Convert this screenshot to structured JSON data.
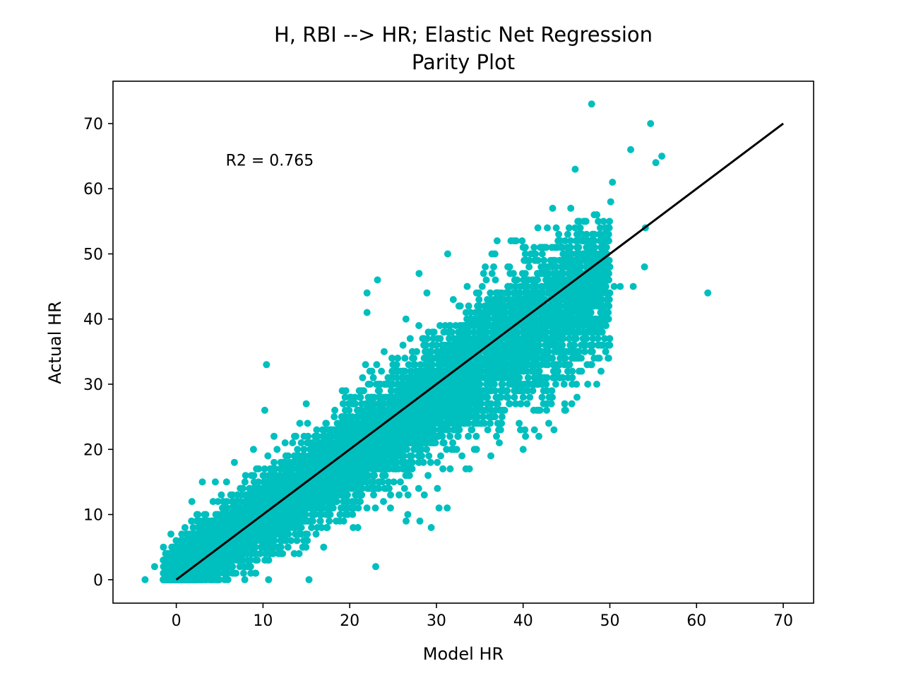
{
  "chart_data": {
    "type": "scatter",
    "title": "H, RBI --> HR; Elastic Net Regression",
    "subtitle": "Parity Plot",
    "xlabel": "Model HR",
    "ylabel": "Actual HR",
    "xlim": [
      -7.3,
      73.5
    ],
    "ylim": [
      -3.6,
      76.5
    ],
    "xticks": [
      0,
      10,
      20,
      30,
      40,
      50,
      60,
      70
    ],
    "yticks": [
      0,
      10,
      20,
      30,
      40,
      50,
      60,
      70
    ],
    "annotation": "R2 = 0.765",
    "annotation_pos": [
      5.7,
      64.4
    ],
    "grid": false,
    "colors": {
      "points": "#00bfbf",
      "parity_line": "#000000",
      "frame": "#000000"
    },
    "parity_line": {
      "x": [
        0,
        70
      ],
      "y": [
        0,
        70
      ]
    },
    "cloud": {
      "description_note": "dense point cloud approximated by a regression band",
      "slope": 0.92,
      "intercept": 0.8,
      "residual_sd": 3.6,
      "x_range": [
        -1.5,
        50
      ],
      "count": 9000
    },
    "series": [
      {
        "name": "",
        "outliers": [
          {
            "x": -3.6,
            "y": 0
          },
          {
            "x": -2.5,
            "y": 2
          },
          {
            "x": 47.9,
            "y": 73
          },
          {
            "x": 54.7,
            "y": 70
          },
          {
            "x": 52.4,
            "y": 66
          },
          {
            "x": 55.3,
            "y": 64
          },
          {
            "x": 56.0,
            "y": 65
          },
          {
            "x": 46.0,
            "y": 63
          },
          {
            "x": 50.3,
            "y": 61
          },
          {
            "x": 50.1,
            "y": 58
          },
          {
            "x": 43.4,
            "y": 57
          },
          {
            "x": 45.5,
            "y": 57
          },
          {
            "x": 48.5,
            "y": 56
          },
          {
            "x": 48.2,
            "y": 56
          },
          {
            "x": 47.1,
            "y": 55
          },
          {
            "x": 54.1,
            "y": 54
          },
          {
            "x": 41.7,
            "y": 54
          },
          {
            "x": 39.2,
            "y": 52
          },
          {
            "x": 46.5,
            "y": 53
          },
          {
            "x": 40.0,
            "y": 51
          },
          {
            "x": 61.3,
            "y": 44
          },
          {
            "x": 54.0,
            "y": 48
          },
          {
            "x": 52.7,
            "y": 45
          },
          {
            "x": 51.2,
            "y": 45
          },
          {
            "x": 50.5,
            "y": 45
          },
          {
            "x": 49.0,
            "y": 47
          },
          {
            "x": 49.7,
            "y": 47
          },
          {
            "x": 47.2,
            "y": 49
          },
          {
            "x": 48.5,
            "y": 49
          },
          {
            "x": 44.8,
            "y": 50
          },
          {
            "x": 44.3,
            "y": 49
          },
          {
            "x": 46.8,
            "y": 44
          },
          {
            "x": 49.2,
            "y": 44
          },
          {
            "x": 49.3,
            "y": 42
          },
          {
            "x": 47.4,
            "y": 47
          },
          {
            "x": 46.5,
            "y": 42
          },
          {
            "x": 44.6,
            "y": 39
          },
          {
            "x": 44.8,
            "y": 27
          },
          {
            "x": 46.3,
            "y": 35
          },
          {
            "x": 46.7,
            "y": 36
          },
          {
            "x": 46.1,
            "y": 34
          },
          {
            "x": 47.2,
            "y": 37
          },
          {
            "x": 42.7,
            "y": 35
          },
          {
            "x": 41.5,
            "y": 35
          },
          {
            "x": 45.2,
            "y": 35
          },
          {
            "x": 43.0,
            "y": 28
          },
          {
            "x": 40.0,
            "y": 20
          },
          {
            "x": 40.2,
            "y": 23
          },
          {
            "x": 39.7,
            "y": 23
          },
          {
            "x": 23.0,
            "y": 2
          },
          {
            "x": 15.3,
            "y": 0
          },
          {
            "x": 29.4,
            "y": 8
          },
          {
            "x": 26.5,
            "y": 9
          },
          {
            "x": 30.3,
            "y": 11
          },
          {
            "x": 33.8,
            "y": 17
          },
          {
            "x": 33.4,
            "y": 17
          },
          {
            "x": 30.1,
            "y": 18
          },
          {
            "x": 22.0,
            "y": 44
          },
          {
            "x": 23.2,
            "y": 46
          },
          {
            "x": 22.0,
            "y": 41
          },
          {
            "x": 28.0,
            "y": 47
          },
          {
            "x": 31.3,
            "y": 50
          },
          {
            "x": 37.0,
            "y": 52
          },
          {
            "x": 38.6,
            "y": 52
          },
          {
            "x": 36.4,
            "y": 50
          },
          {
            "x": 10.4,
            "y": 33
          },
          {
            "x": 8.9,
            "y": 20
          },
          {
            "x": 6.7,
            "y": 18
          },
          {
            "x": 10.2,
            "y": 26
          },
          {
            "x": 9.5,
            "y": 17
          },
          {
            "x": 3.0,
            "y": 15
          },
          {
            "x": 4.5,
            "y": 15
          },
          {
            "x": 5.8,
            "y": 15
          },
          {
            "x": 1.8,
            "y": 12
          },
          {
            "x": 2.5,
            "y": 10
          },
          {
            "x": 1.0,
            "y": 8
          },
          {
            "x": 0.5,
            "y": 6
          },
          {
            "x": 0.2,
            "y": 4
          },
          {
            "x": -0.5,
            "y": 3
          },
          {
            "x": -1.2,
            "y": 1
          },
          {
            "x": -0.8,
            "y": 2
          },
          {
            "x": 40.1,
            "y": 45
          },
          {
            "x": 42.5,
            "y": 47
          },
          {
            "x": 43.7,
            "y": 45
          },
          {
            "x": 38.5,
            "y": 47
          },
          {
            "x": 36.6,
            "y": 48
          },
          {
            "x": 41.8,
            "y": 31
          },
          {
            "x": 44.2,
            "y": 40
          },
          {
            "x": 43.3,
            "y": 41
          },
          {
            "x": 36.8,
            "y": 32
          },
          {
            "x": 38.1,
            "y": 29
          },
          {
            "x": 39.8,
            "y": 30
          },
          {
            "x": 36.5,
            "y": 33
          },
          {
            "x": 35.2,
            "y": 26
          },
          {
            "x": 32.7,
            "y": 25
          },
          {
            "x": 34.6,
            "y": 22
          },
          {
            "x": 26.7,
            "y": 10
          },
          {
            "x": 28.6,
            "y": 13
          },
          {
            "x": 24.7,
            "y": 11
          },
          {
            "x": 25.7,
            "y": 13
          },
          {
            "x": 20.4,
            "y": 8
          },
          {
            "x": 19.3,
            "y": 9
          }
        ]
      }
    ]
  }
}
